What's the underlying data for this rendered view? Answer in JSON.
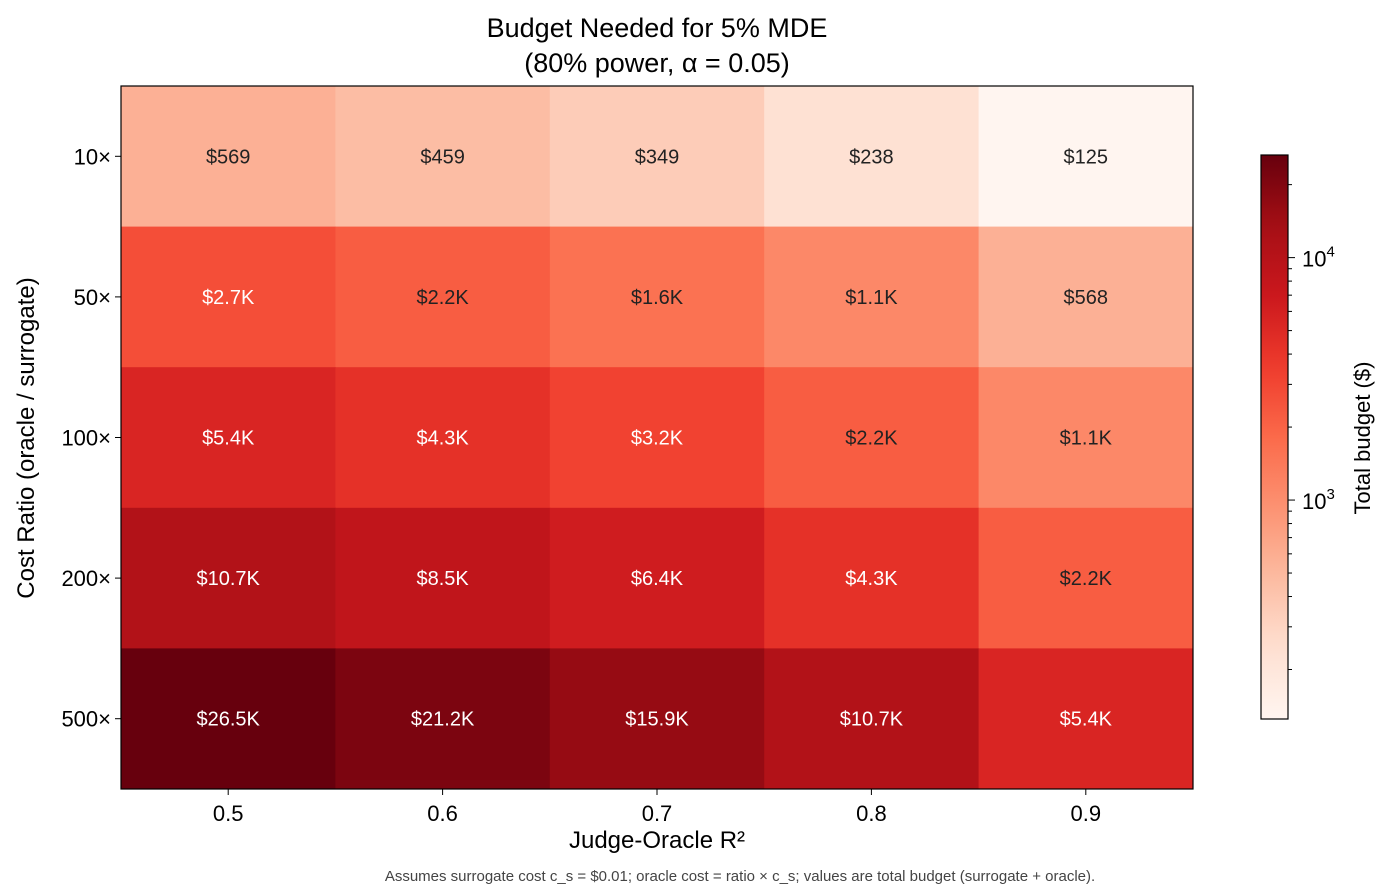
{
  "chart_data": {
    "type": "heatmap",
    "title": [
      "Budget Needed for 5% MDE",
      "(80% power, α = 0.05)"
    ],
    "xlabel": "Judge-Oracle R²",
    "ylabel": "Cost Ratio (oracle / surrogate)",
    "x_categories": [
      "0.5",
      "0.6",
      "0.7",
      "0.8",
      "0.9"
    ],
    "y_categories": [
      "10×",
      "50×",
      "100×",
      "200×",
      "500×"
    ],
    "values": [
      [
        569,
        459,
        349,
        238,
        125
      ],
      [
        2700,
        2200,
        1600,
        1100,
        568
      ],
      [
        5400,
        4300,
        3200,
        2200,
        1100
      ],
      [
        10700,
        8500,
        6400,
        4300,
        2200
      ],
      [
        26500,
        21200,
        15900,
        10700,
        5400
      ]
    ],
    "labels": [
      [
        "$569",
        "$459",
        "$349",
        "$238",
        "$125"
      ],
      [
        "$2.7K",
        "$2.2K",
        "$1.6K",
        "$1.1K",
        "$568"
      ],
      [
        "$5.4K",
        "$4.3K",
        "$3.2K",
        "$2.2K",
        "$1.1K"
      ],
      [
        "$10.7K",
        "$8.5K",
        "$6.4K",
        "$4.3K",
        "$2.2K"
      ],
      [
        "$26.5K",
        "$21.2K",
        "$15.9K",
        "$10.7K",
        "$5.4K"
      ]
    ],
    "colormap": "Reds",
    "color_scale": "log",
    "color_range": [
      125,
      26500
    ],
    "colorbar": {
      "label": "Total budget ($)",
      "ticks": [
        {
          "value": 1000,
          "label": "10",
          "exp": "3"
        },
        {
          "value": 10000,
          "label": "10",
          "exp": "4"
        }
      ]
    },
    "footnote": "Assumes surrogate cost c_s = $0.01; oracle cost = ratio × c_s; values are total budget (surrogate + oracle)."
  }
}
